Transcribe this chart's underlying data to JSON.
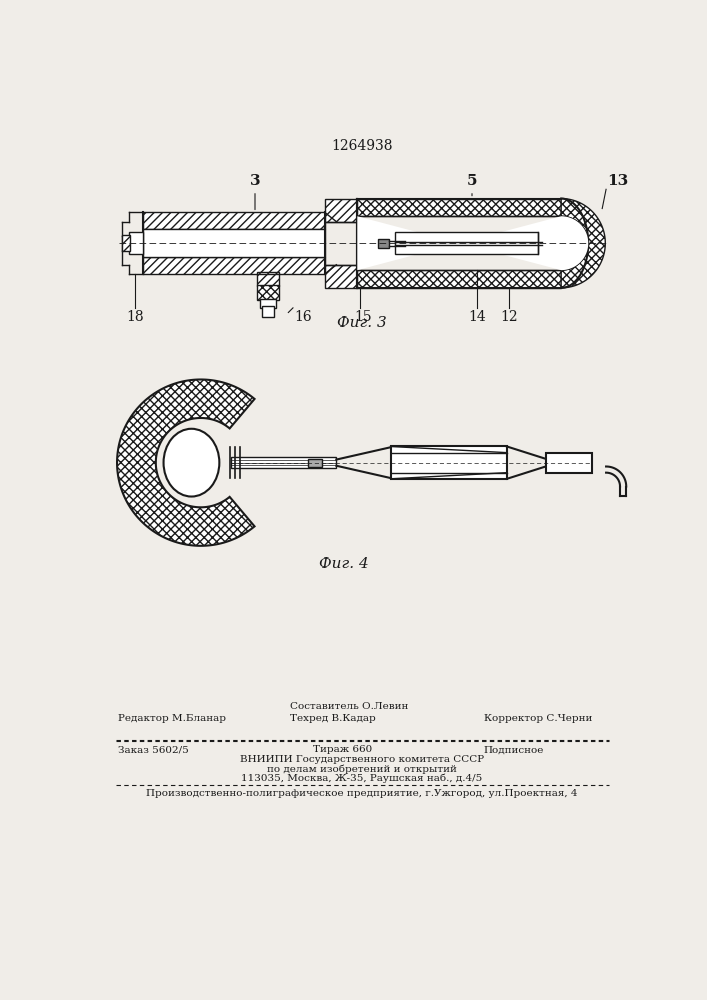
{
  "patent_number": "1264938",
  "fig3_caption": "Фиг. 3",
  "fig4_caption": "Фиг. 4",
  "bg_color": "#f0ede8",
  "line_color": "#1a1a1a",
  "footer": {
    "editor": "Редактор М.Бланар",
    "composer": "Составитель О.Левин",
    "tech": "Техред В.Кадар",
    "corrector": "Корректор С.Черни",
    "order": "Заказ 5602/5",
    "circulation": "Тираж 660",
    "subscription": "Подписное",
    "vniigi_line1": "ВНИИПИ Государственного комитета СССР",
    "vniigi_line2": "по делам изобретений и открытий",
    "vniigi_line3": "113035, Москва, Ж-35, Раушская наб., д.4/5",
    "factory": "Производственно-полиграфическое предприятие, г.Ужгород, ул.Проектная, 4"
  }
}
